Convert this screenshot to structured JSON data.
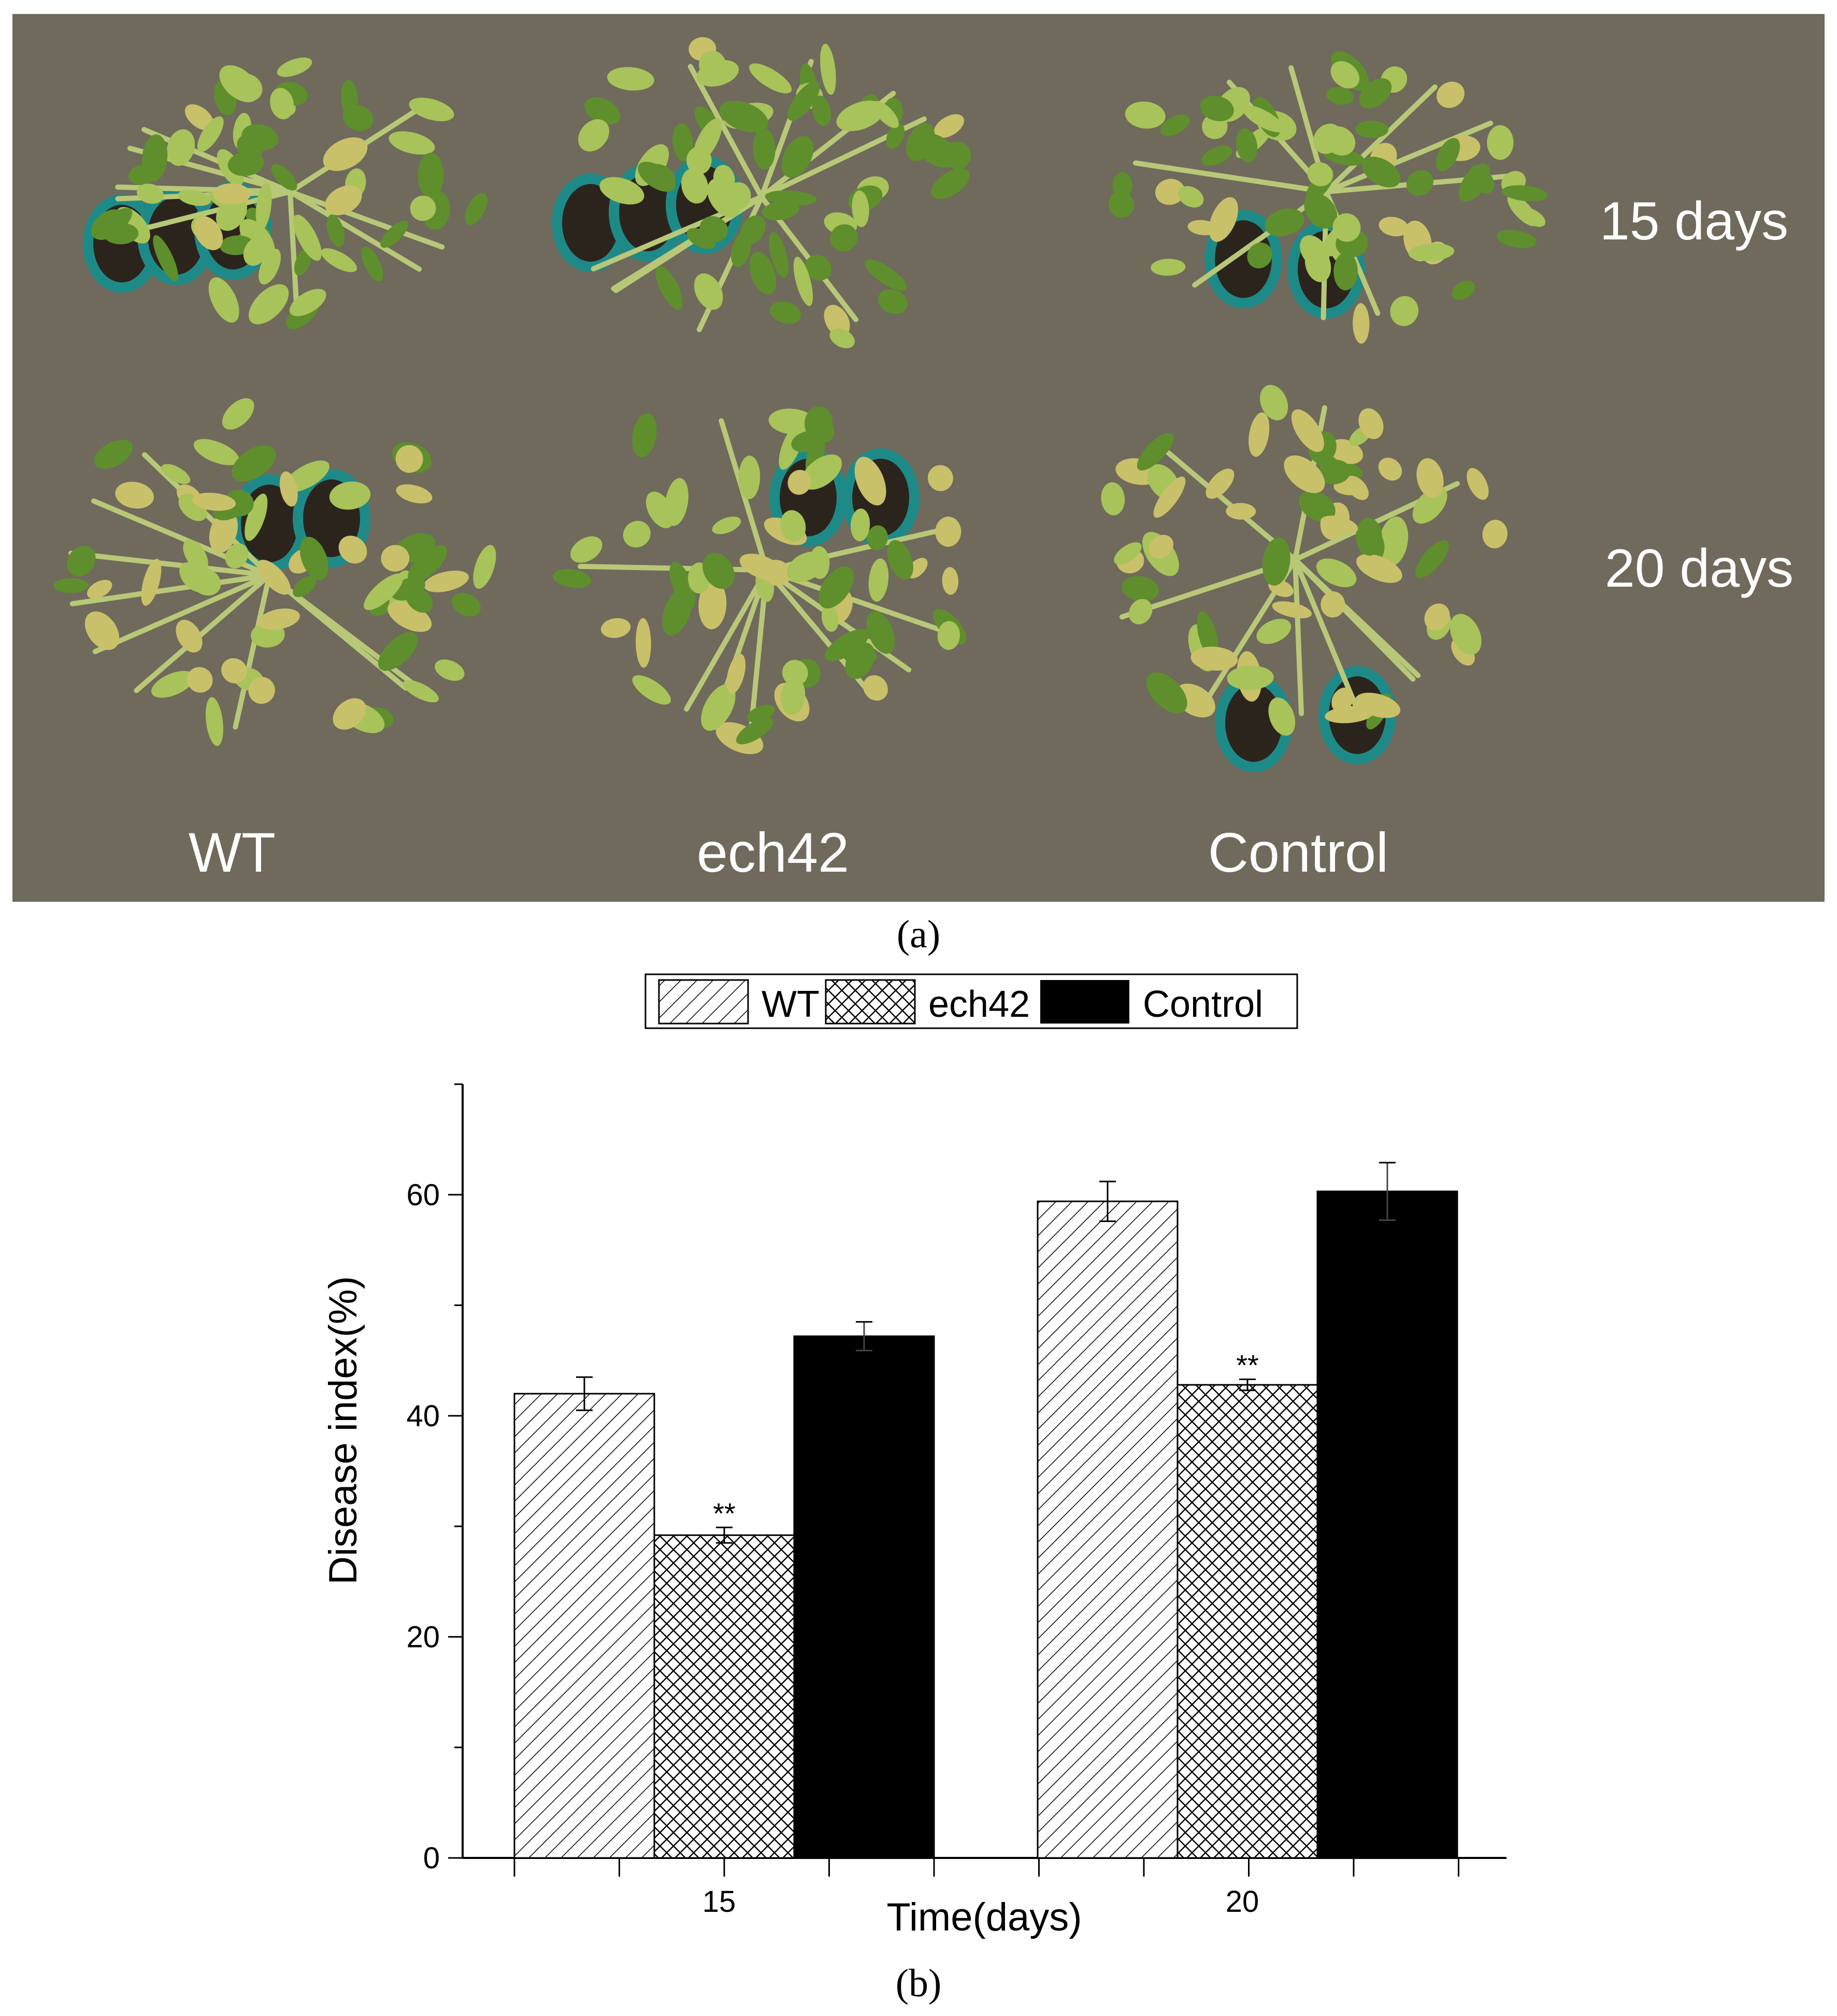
{
  "panel_a": {
    "caption": "(a)",
    "row_labels": [
      "15 days",
      "20 days"
    ],
    "column_labels": [
      "WT",
      "ech42",
      "Control"
    ]
  },
  "panel_b": {
    "caption": "(b)"
  },
  "colors": {
    "photo_background": "#6f6a5c",
    "leaf_green": "#5e8f2c",
    "leaf_light": "#a7c35a",
    "leaf_yellow": "#c9c06a",
    "pot_teal": "#1e8a88",
    "bar_control": "#000000"
  },
  "chart_data": {
    "type": "bar",
    "categories": [
      "15",
      "20"
    ],
    "series": [
      {
        "name": "WT",
        "values": [
          42.0,
          59.4
        ],
        "errors": [
          1.5,
          1.8
        ],
        "pattern": "diagonal-hatch",
        "significance": [
          "",
          ""
        ]
      },
      {
        "name": "ech42",
        "values": [
          29.2,
          42.8
        ],
        "errors": [
          0.7,
          0.5
        ],
        "pattern": "cross-hatch",
        "significance": [
          "**",
          "**"
        ]
      },
      {
        "name": "Control",
        "values": [
          47.2,
          60.3
        ],
        "errors": [
          1.3,
          2.6
        ],
        "pattern": "solid-black",
        "significance": [
          "",
          ""
        ]
      }
    ],
    "xlabel": "Time(days)",
    "ylabel": "Disease index(%)",
    "ylim": [
      0,
      70
    ],
    "yticks": [
      0,
      20,
      40,
      60
    ],
    "legend_position": "top-center",
    "grid": false
  }
}
